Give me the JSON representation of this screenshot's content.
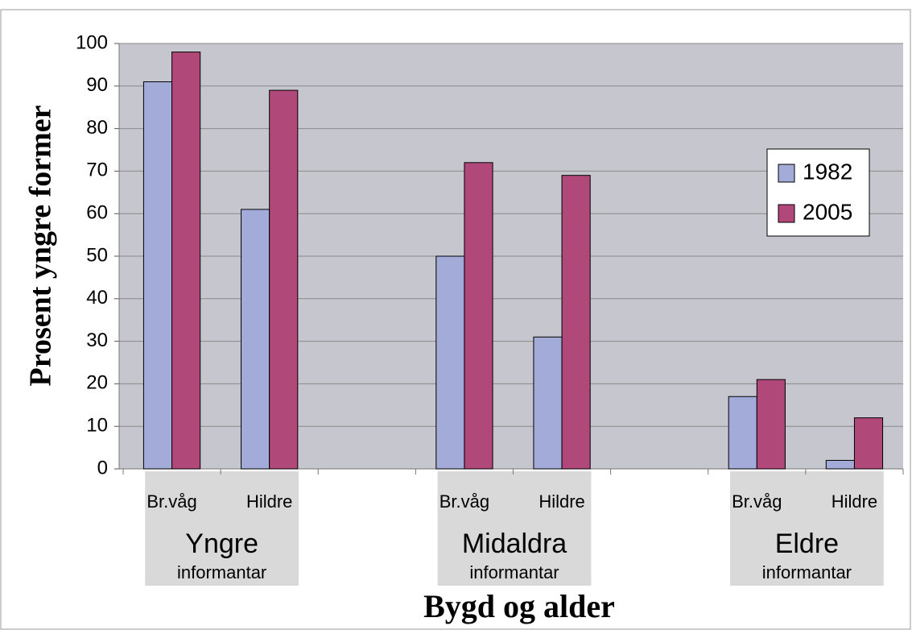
{
  "chart_data": {
    "type": "bar",
    "y_label": "Prosent yngre former",
    "x_label": "Bygd og alder",
    "categories": [
      "Br.våg",
      "Hildre",
      null,
      "Br.våg",
      "Hildre",
      null,
      "Br.våg",
      "Hildre"
    ],
    "groups": [
      {
        "label": "Yngre",
        "sublabel": "informantar"
      },
      {
        "label": "Midaldra",
        "sublabel": "informantar"
      },
      {
        "label": "Eldre",
        "sublabel": "informantar"
      }
    ],
    "series": [
      {
        "name": "1982",
        "color": "#a3acd9",
        "values": [
          91,
          61,
          null,
          50,
          31,
          null,
          17,
          2
        ]
      },
      {
        "name": "2005",
        "color": "#b0497a",
        "values": [
          98,
          89,
          null,
          72,
          69,
          null,
          21,
          12
        ]
      }
    ],
    "ylim": [
      0,
      100
    ],
    "yticks": [
      0,
      10,
      20,
      30,
      40,
      50,
      60,
      70,
      80,
      90,
      100
    ],
    "grid": true,
    "legend": "right"
  }
}
